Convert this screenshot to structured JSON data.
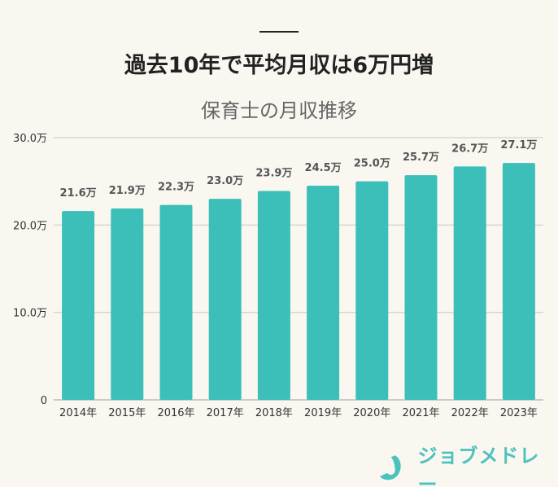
{
  "title": "過去10年で平均月収は6万円増",
  "subtitle": "保育士の月収推移",
  "brand": "ジョブメドレー",
  "colors": {
    "bar": "#3bbfb8",
    "background": "#faf7f1",
    "grid": "#d9d6cf",
    "brand": "#4cc2bd"
  },
  "chart_data": {
    "type": "bar",
    "title": "保育士の月収推移",
    "categories": [
      "2014年",
      "2015年",
      "2016年",
      "2017年",
      "2018年",
      "2019年",
      "2020年",
      "2021年",
      "2022年",
      "2023年"
    ],
    "values": [
      21.6,
      21.9,
      22.3,
      23.0,
      23.9,
      24.5,
      25.0,
      25.7,
      26.7,
      27.1
    ],
    "data_labels": [
      "21.6万",
      "21.9万",
      "22.3万",
      "23.0万",
      "23.9万",
      "24.5万",
      "25.0万",
      "25.7万",
      "26.7万",
      "27.1万"
    ],
    "yticks": [
      0,
      10,
      20,
      30
    ],
    "ytick_labels": [
      "0",
      "10.0万",
      "20.0万",
      "30.0万"
    ],
    "ylim": [
      0,
      30
    ],
    "grid": true,
    "xlabel": "",
    "ylabel": ""
  }
}
